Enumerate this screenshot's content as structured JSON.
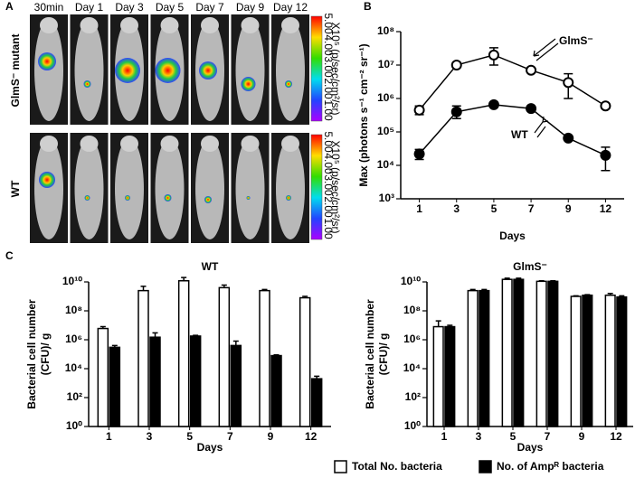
{
  "panel_labels": [
    "A",
    "B",
    "C"
  ],
  "panel_a": {
    "timepoints": [
      "30min",
      "Day 1",
      "Day 3",
      "Day 5",
      "Day 7",
      "Day 9",
      "Day 12"
    ],
    "rows": [
      "GlmS⁻ mutant",
      "WT"
    ],
    "colorbar_label": "X10⁵ (p/sec/cm²/sr)",
    "colorbar_ticks": [
      "5.00",
      "4.00",
      "3.00",
      "2.00",
      "1.00"
    ]
  },
  "chart_data": [
    {
      "type": "line",
      "y_label": "Max (photons s⁻¹ cm⁻² sr⁻¹)",
      "x_label": "Days",
      "categories": [
        "1",
        "3",
        "5",
        "7",
        "9",
        "12"
      ],
      "log_y": true,
      "ylim": [
        1000,
        100000000
      ],
      "yticks": [
        {
          "value": 1000,
          "label": "10³"
        },
        {
          "value": 10000,
          "label": "10⁴"
        },
        {
          "value": 100000,
          "label": "10⁵"
        },
        {
          "value": 1000000,
          "label": "10⁶"
        },
        {
          "value": 10000000,
          "label": "10⁷"
        },
        {
          "value": 100000000,
          "label": "10⁸"
        }
      ],
      "series": [
        {
          "name": "GlmS⁻",
          "color": "#000000",
          "fill": "#ffffff",
          "values": [
            450000,
            10000000,
            20000000,
            7000000,
            3000000,
            600000
          ],
          "err_upper": [
            600000,
            12000000,
            33000000,
            8000000,
            5500000,
            700000
          ],
          "err_lower": [
            330000,
            8500000,
            10000000,
            6000000,
            1000000,
            500000
          ]
        },
        {
          "name": "WT",
          "color": "#000000",
          "fill": "#000000",
          "values": [
            22000,
            400000,
            650000,
            500000,
            65000,
            20000
          ],
          "err_upper": [
            30000,
            600000,
            750000,
            550000,
            70000,
            35000
          ],
          "err_lower": [
            15000,
            250000,
            550000,
            450000,
            60000,
            7000
          ]
        }
      ]
    },
    {
      "type": "bar",
      "title": "WT",
      "y_label": [
        "Bacterial cell number",
        "(CFU)/ g"
      ],
      "x_label": "Days",
      "categories": [
        "1",
        "3",
        "5",
        "7",
        "9",
        "12"
      ],
      "log_y": true,
      "ylim": [
        1,
        10000000000
      ],
      "yticks": [
        {
          "value": 1,
          "label": "10⁰"
        },
        {
          "value": 100,
          "label": "10²"
        },
        {
          "value": 10000,
          "label": "10⁴"
        },
        {
          "value": 1000000,
          "label": "10⁶"
        },
        {
          "value": 100000000,
          "label": "10⁸"
        },
        {
          "value": 10000000000,
          "label": "10¹⁰"
        }
      ],
      "series": [
        {
          "name": "Total No. bacteria",
          "color": "#ffffff",
          "values": [
            6000000,
            2500000000,
            12000000000,
            4000000000,
            2500000000,
            800000000
          ],
          "err_upper": [
            8000000,
            5000000000,
            20000000000,
            6000000000,
            3000000000,
            1000000000
          ]
        },
        {
          "name": "No. of Ampᴿ bacteria",
          "color": "#000000",
          "values": [
            300000,
            1500000,
            1800000,
            400000,
            80000,
            2000
          ],
          "err_upper": [
            400000,
            3000000,
            2000000,
            800000,
            90000,
            3000
          ]
        }
      ]
    },
    {
      "type": "bar",
      "title": "GlmS⁻",
      "y_label": [
        "Bacterial cell number",
        "(CFU)/ g"
      ],
      "x_label": "Days",
      "categories": [
        "1",
        "3",
        "5",
        "7",
        "9",
        "12"
      ],
      "log_y": true,
      "ylim": [
        1,
        10000000000
      ],
      "yticks": [
        {
          "value": 1,
          "label": "10⁰"
        },
        {
          "value": 100,
          "label": "10²"
        },
        {
          "value": 10000,
          "label": "10⁴"
        },
        {
          "value": 1000000,
          "label": "10⁶"
        },
        {
          "value": 100000000,
          "label": "10⁸"
        },
        {
          "value": 10000000000,
          "label": "10¹⁰"
        }
      ],
      "series": [
        {
          "color": "#ffffff",
          "values": [
            8000000,
            2500000000,
            15000000000,
            11000000000,
            1000000000,
            1200000000
          ],
          "err_upper": [
            20000000,
            3000000000,
            18000000000,
            12000000000,
            1100000000,
            1600000000
          ]
        },
        {
          "color": "#000000",
          "values": [
            8000000,
            2500000000,
            15000000000,
            11000000000,
            1200000000,
            900000000
          ],
          "err_upper": [
            10000000,
            3000000000,
            18000000000,
            12000000000,
            1300000000,
            1100000000
          ]
        }
      ]
    }
  ]
}
